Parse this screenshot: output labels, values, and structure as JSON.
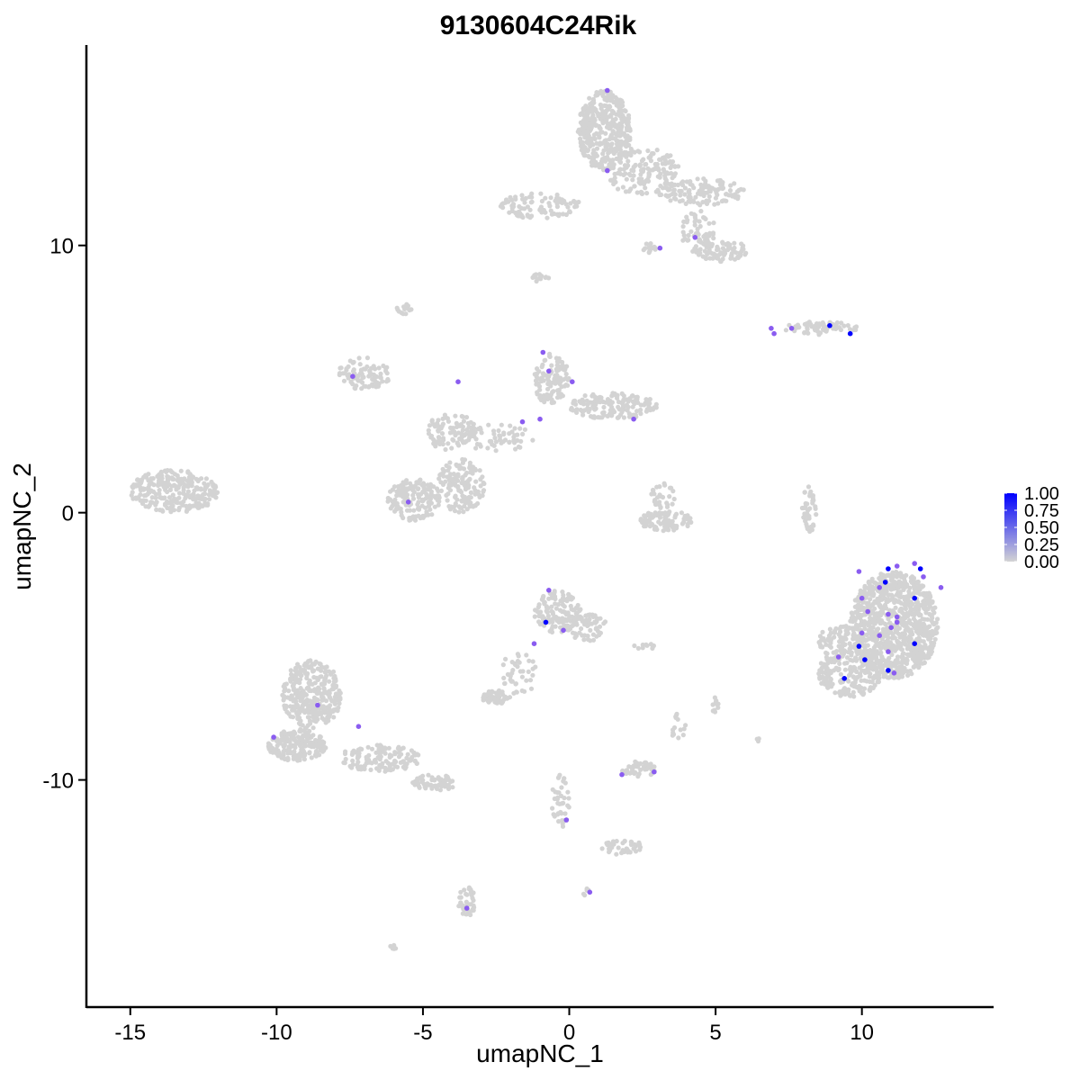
{
  "chart_data": {
    "type": "scatter",
    "title": "9130604C24Rik",
    "xlabel": "umapNC_1",
    "ylabel": "umapNC_2",
    "xlim": [
      -16.5,
      14.5
    ],
    "ylim": [
      -18.5,
      17.5
    ],
    "xticks": [
      -15,
      -10,
      -5,
      0,
      5,
      10
    ],
    "xtick_labels": [
      "-15",
      "-10",
      "-5",
      "0",
      "5",
      "10"
    ],
    "yticks": [
      -10,
      0,
      10
    ],
    "ytick_labels": [
      "-10",
      "0",
      "10"
    ],
    "grid": false,
    "legend": {
      "placement": "right",
      "labels": [
        "1.00",
        "0.75",
        "0.50",
        "0.25",
        "0.00"
      ],
      "values": [
        1.0,
        0.75,
        0.5,
        0.25,
        0.0
      ]
    },
    "color_scale": {
      "low": "#d3d3d3",
      "high": "#0000ff",
      "min": 0,
      "max": 1
    },
    "clusters": [
      {
        "cx": 1.2,
        "cy": 14.3,
        "rx": 0.9,
        "ry": 1.5,
        "n": 400
      },
      {
        "cx": 2.5,
        "cy": 12.8,
        "rx": 1.3,
        "ry": 0.9,
        "n": 150
      },
      {
        "cx": 4.5,
        "cy": 12.0,
        "rx": 1.5,
        "ry": 0.5,
        "n": 120
      },
      {
        "cx": 5.2,
        "cy": 9.8,
        "rx": 0.9,
        "ry": 0.4,
        "n": 80
      },
      {
        "cx": 4.4,
        "cy": 10.5,
        "rx": 0.6,
        "ry": 0.8,
        "n": 60
      },
      {
        "cx": -1.0,
        "cy": 11.5,
        "rx": 1.4,
        "ry": 0.5,
        "n": 90
      },
      {
        "cx": 8.6,
        "cy": 6.9,
        "rx": 1.3,
        "ry": 0.25,
        "n": 70
      },
      {
        "cx": -13.5,
        "cy": 0.8,
        "rx": 1.5,
        "ry": 0.8,
        "n": 260
      },
      {
        "cx": -7.0,
        "cy": 5.2,
        "rx": 0.9,
        "ry": 0.6,
        "n": 90
      },
      {
        "cx": -5.3,
        "cy": 0.5,
        "rx": 0.9,
        "ry": 0.8,
        "n": 150
      },
      {
        "cx": -3.7,
        "cy": 1.0,
        "rx": 0.8,
        "ry": 1.0,
        "n": 140
      },
      {
        "cx": -4.0,
        "cy": 3.0,
        "rx": 0.9,
        "ry": 0.7,
        "n": 90
      },
      {
        "cx": -2.5,
        "cy": 2.8,
        "rx": 1.3,
        "ry": 0.5,
        "n": 60
      },
      {
        "cx": -0.6,
        "cy": 5.0,
        "rx": 0.6,
        "ry": 1.0,
        "n": 110
      },
      {
        "cx": 1.5,
        "cy": 4.0,
        "rx": 1.5,
        "ry": 0.5,
        "n": 150
      },
      {
        "cx": 3.3,
        "cy": -0.3,
        "rx": 0.9,
        "ry": 0.4,
        "n": 90
      },
      {
        "cx": 3.2,
        "cy": 0.6,
        "rx": 0.4,
        "ry": 0.5,
        "n": 30
      },
      {
        "cx": 8.2,
        "cy": 0.1,
        "rx": 0.25,
        "ry": 0.9,
        "n": 40
      },
      {
        "cx": 11.1,
        "cy": -4.2,
        "rx": 1.5,
        "ry": 2.0,
        "n": 900
      },
      {
        "cx": 9.6,
        "cy": -6.0,
        "rx": 1.1,
        "ry": 0.9,
        "n": 200
      },
      {
        "cx": 9.2,
        "cy": -4.8,
        "rx": 0.7,
        "ry": 0.6,
        "n": 80
      },
      {
        "cx": -0.4,
        "cy": -3.7,
        "rx": 0.8,
        "ry": 0.8,
        "n": 140
      },
      {
        "cx": 0.6,
        "cy": -4.3,
        "rx": 0.7,
        "ry": 0.5,
        "n": 60
      },
      {
        "cx": -1.7,
        "cy": -6.0,
        "rx": 0.6,
        "ry": 0.9,
        "n": 40
      },
      {
        "cx": -2.5,
        "cy": -6.9,
        "rx": 0.5,
        "ry": 0.25,
        "n": 50
      },
      {
        "cx": -8.8,
        "cy": -6.8,
        "rx": 1.0,
        "ry": 1.3,
        "n": 330
      },
      {
        "cx": -9.3,
        "cy": -8.7,
        "rx": 1.0,
        "ry": 0.6,
        "n": 200
      },
      {
        "cx": -6.5,
        "cy": -9.2,
        "rx": 1.4,
        "ry": 0.5,
        "n": 130
      },
      {
        "cx": -4.6,
        "cy": -10.1,
        "rx": 0.8,
        "ry": 0.3,
        "n": 60
      },
      {
        "cx": 2.4,
        "cy": -9.6,
        "rx": 0.6,
        "ry": 0.3,
        "n": 50
      },
      {
        "cx": -0.3,
        "cy": -10.8,
        "rx": 0.3,
        "ry": 1.0,
        "n": 40
      },
      {
        "cx": 1.8,
        "cy": -12.5,
        "rx": 0.7,
        "ry": 0.3,
        "n": 40
      },
      {
        "cx": -3.5,
        "cy": -14.6,
        "rx": 0.3,
        "ry": 0.6,
        "n": 40
      },
      {
        "cx": 0.6,
        "cy": -14.2,
        "rx": 0.15,
        "ry": 0.15,
        "n": 5
      },
      {
        "cx": -6.0,
        "cy": -16.2,
        "rx": 0.15,
        "ry": 0.12,
        "n": 5
      },
      {
        "cx": 3.7,
        "cy": -8.0,
        "rx": 0.3,
        "ry": 0.5,
        "n": 15
      },
      {
        "cx": 5.0,
        "cy": -7.3,
        "rx": 0.1,
        "ry": 0.4,
        "n": 10
      },
      {
        "cx": 2.6,
        "cy": -5.0,
        "rx": 0.4,
        "ry": 0.1,
        "n": 10
      },
      {
        "cx": 6.4,
        "cy": -8.5,
        "rx": 0.1,
        "ry": 0.1,
        "n": 3
      },
      {
        "cx": 2.8,
        "cy": 9.9,
        "rx": 0.3,
        "ry": 0.2,
        "n": 15
      },
      {
        "cx": -1.0,
        "cy": 8.8,
        "rx": 0.3,
        "ry": 0.2,
        "n": 12
      },
      {
        "cx": -5.6,
        "cy": 7.6,
        "rx": 0.3,
        "ry": 0.2,
        "n": 15
      }
    ],
    "expressing_points": [
      {
        "x": 1.3,
        "y": 15.8,
        "v": 0.5
      },
      {
        "x": 1.3,
        "y": 12.8,
        "v": 0.5
      },
      {
        "x": 4.3,
        "y": 10.3,
        "v": 0.5
      },
      {
        "x": 3.1,
        "y": 9.9,
        "v": 0.5
      },
      {
        "x": 6.9,
        "y": 6.9,
        "v": 0.5
      },
      {
        "x": 7.0,
        "y": 6.7,
        "v": 0.5
      },
      {
        "x": 7.6,
        "y": 6.9,
        "v": 0.5
      },
      {
        "x": 8.9,
        "y": 7.0,
        "v": 1.0
      },
      {
        "x": 9.6,
        "y": 6.7,
        "v": 1.0
      },
      {
        "x": -7.4,
        "y": 5.1,
        "v": 0.5
      },
      {
        "x": -3.8,
        "y": 4.9,
        "v": 0.5
      },
      {
        "x": -0.9,
        "y": 6.0,
        "v": 0.5
      },
      {
        "x": -0.7,
        "y": 5.3,
        "v": 0.5
      },
      {
        "x": 0.1,
        "y": 4.9,
        "v": 0.5
      },
      {
        "x": -1.6,
        "y": 3.4,
        "v": 0.5
      },
      {
        "x": -1.0,
        "y": 3.5,
        "v": 0.5
      },
      {
        "x": 2.2,
        "y": 3.5,
        "v": 0.5
      },
      {
        "x": -5.5,
        "y": 0.4,
        "v": 0.5
      },
      {
        "x": 9.9,
        "y": -2.2,
        "v": 0.5
      },
      {
        "x": 10.8,
        "y": -2.6,
        "v": 1.0
      },
      {
        "x": 10.9,
        "y": -2.1,
        "v": 1.0
      },
      {
        "x": 11.2,
        "y": -2.0,
        "v": 0.5
      },
      {
        "x": 11.8,
        "y": -1.9,
        "v": 0.5
      },
      {
        "x": 12.0,
        "y": -2.1,
        "v": 1.0
      },
      {
        "x": 12.1,
        "y": -2.4,
        "v": 0.5
      },
      {
        "x": 12.7,
        "y": -2.8,
        "v": 0.5
      },
      {
        "x": 10.0,
        "y": -3.2,
        "v": 0.5
      },
      {
        "x": 10.6,
        "y": -2.8,
        "v": 0.5
      },
      {
        "x": 11.8,
        "y": -3.2,
        "v": 1.0
      },
      {
        "x": 10.2,
        "y": -3.7,
        "v": 0.5
      },
      {
        "x": 10.9,
        "y": -3.8,
        "v": 0.5
      },
      {
        "x": 11.2,
        "y": -3.9,
        "v": 0.5
      },
      {
        "x": 11.2,
        "y": -4.1,
        "v": 0.5
      },
      {
        "x": 11.0,
        "y": -4.3,
        "v": 0.5
      },
      {
        "x": 10.0,
        "y": -4.5,
        "v": 0.5
      },
      {
        "x": 10.6,
        "y": -4.6,
        "v": 0.5
      },
      {
        "x": 9.9,
        "y": -5.0,
        "v": 1.0
      },
      {
        "x": 10.9,
        "y": -5.2,
        "v": 0.5
      },
      {
        "x": 11.8,
        "y": -4.9,
        "v": 1.0
      },
      {
        "x": 10.1,
        "y": -5.5,
        "v": 1.0
      },
      {
        "x": 9.2,
        "y": -5.4,
        "v": 0.5
      },
      {
        "x": 9.4,
        "y": -6.2,
        "v": 1.0
      },
      {
        "x": 10.9,
        "y": -5.9,
        "v": 1.0
      },
      {
        "x": 11.1,
        "y": -6.0,
        "v": 0.5
      },
      {
        "x": -0.7,
        "y": -2.9,
        "v": 0.5
      },
      {
        "x": -0.8,
        "y": -4.1,
        "v": 1.0
      },
      {
        "x": -0.2,
        "y": -4.4,
        "v": 0.5
      },
      {
        "x": -1.2,
        "y": -4.9,
        "v": 0.5
      },
      {
        "x": -8.6,
        "y": -7.2,
        "v": 0.5
      },
      {
        "x": -10.1,
        "y": -8.4,
        "v": 0.5
      },
      {
        "x": -7.2,
        "y": -8.0,
        "v": 0.5
      },
      {
        "x": 1.8,
        "y": -9.8,
        "v": 0.5
      },
      {
        "x": 2.9,
        "y": -9.7,
        "v": 0.5
      },
      {
        "x": -0.1,
        "y": -11.5,
        "v": 0.5
      },
      {
        "x": 0.7,
        "y": -14.2,
        "v": 0.5
      },
      {
        "x": -3.5,
        "y": -14.8,
        "v": 0.5
      }
    ]
  }
}
